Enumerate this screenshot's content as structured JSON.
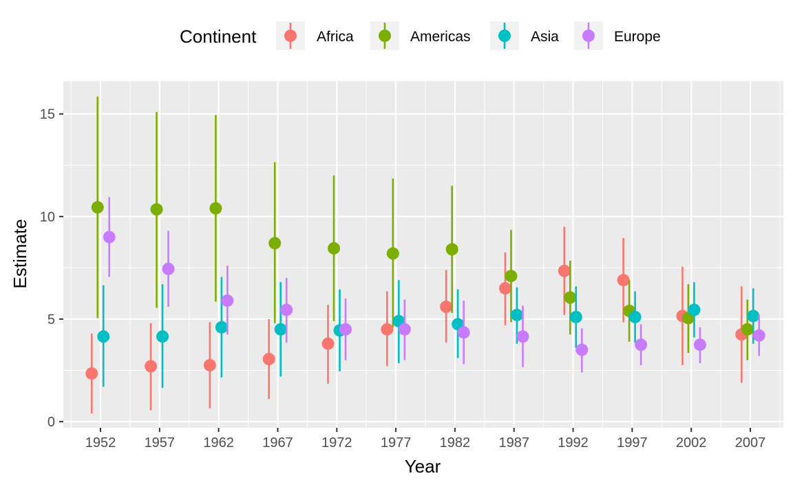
{
  "chart_data": {
    "type": "scatter",
    "title": "",
    "xlabel": "Year",
    "ylabel": "Estimate",
    "legend_title": "Continent",
    "legend_position": "top",
    "grid": true,
    "ylim": [
      -0.3,
      16.6
    ],
    "yticks": [
      0,
      5,
      10,
      15
    ],
    "categories": [
      "1952",
      "1957",
      "1962",
      "1967",
      "1972",
      "1977",
      "1982",
      "1987",
      "1992",
      "1997",
      "2002",
      "2007"
    ],
    "series": [
      {
        "name": "Africa",
        "color": "#F8766D",
        "estimate": [
          2.35,
          2.7,
          2.75,
          3.05,
          3.8,
          4.5,
          5.6,
          6.5,
          7.35,
          6.9,
          5.15,
          4.25
        ],
        "lower": [
          0.4,
          0.55,
          0.65,
          1.1,
          1.85,
          2.7,
          3.85,
          4.7,
          5.2,
          4.85,
          2.75,
          1.9
        ],
        "upper": [
          4.3,
          4.8,
          4.85,
          5.0,
          5.7,
          6.35,
          7.4,
          8.25,
          9.5,
          8.95,
          7.55,
          6.6
        ]
      },
      {
        "name": "Americas",
        "color": "#7CAE00",
        "estimate": [
          10.45,
          10.35,
          10.4,
          8.7,
          8.45,
          8.2,
          8.4,
          7.1,
          6.05,
          5.4,
          5.05,
          4.5
        ],
        "lower": [
          5.05,
          5.55,
          5.85,
          4.8,
          4.9,
          4.6,
          5.3,
          4.85,
          4.25,
          3.9,
          3.35,
          3.0
        ],
        "upper": [
          15.85,
          15.1,
          14.95,
          12.65,
          12.0,
          11.85,
          11.5,
          9.35,
          7.85,
          6.9,
          6.7,
          5.95
        ]
      },
      {
        "name": "Asia",
        "color": "#00BFC4",
        "estimate": [
          4.15,
          4.15,
          4.6,
          4.5,
          4.45,
          4.9,
          4.75,
          5.2,
          5.1,
          5.1,
          5.45,
          5.15
        ],
        "lower": [
          1.7,
          1.65,
          2.15,
          2.2,
          2.45,
          2.85,
          3.1,
          3.8,
          3.6,
          3.85,
          4.1,
          3.8
        ],
        "upper": [
          6.65,
          6.7,
          7.05,
          6.8,
          6.45,
          6.9,
          6.45,
          6.55,
          6.6,
          6.35,
          6.8,
          6.5
        ]
      },
      {
        "name": "Europe",
        "color": "#C77CFF",
        "estimate": [
          9.0,
          7.45,
          5.9,
          5.45,
          4.5,
          4.5,
          4.35,
          4.15,
          3.5,
          3.75,
          3.75,
          4.2
        ],
        "lower": [
          7.05,
          5.6,
          4.25,
          3.85,
          3.0,
          3.0,
          2.8,
          2.65,
          2.4,
          2.75,
          2.85,
          3.2
        ],
        "upper": [
          10.95,
          9.3,
          7.6,
          7.0,
          6.0,
          5.95,
          5.9,
          5.65,
          4.55,
          4.75,
          4.6,
          5.2
        ]
      }
    ]
  }
}
